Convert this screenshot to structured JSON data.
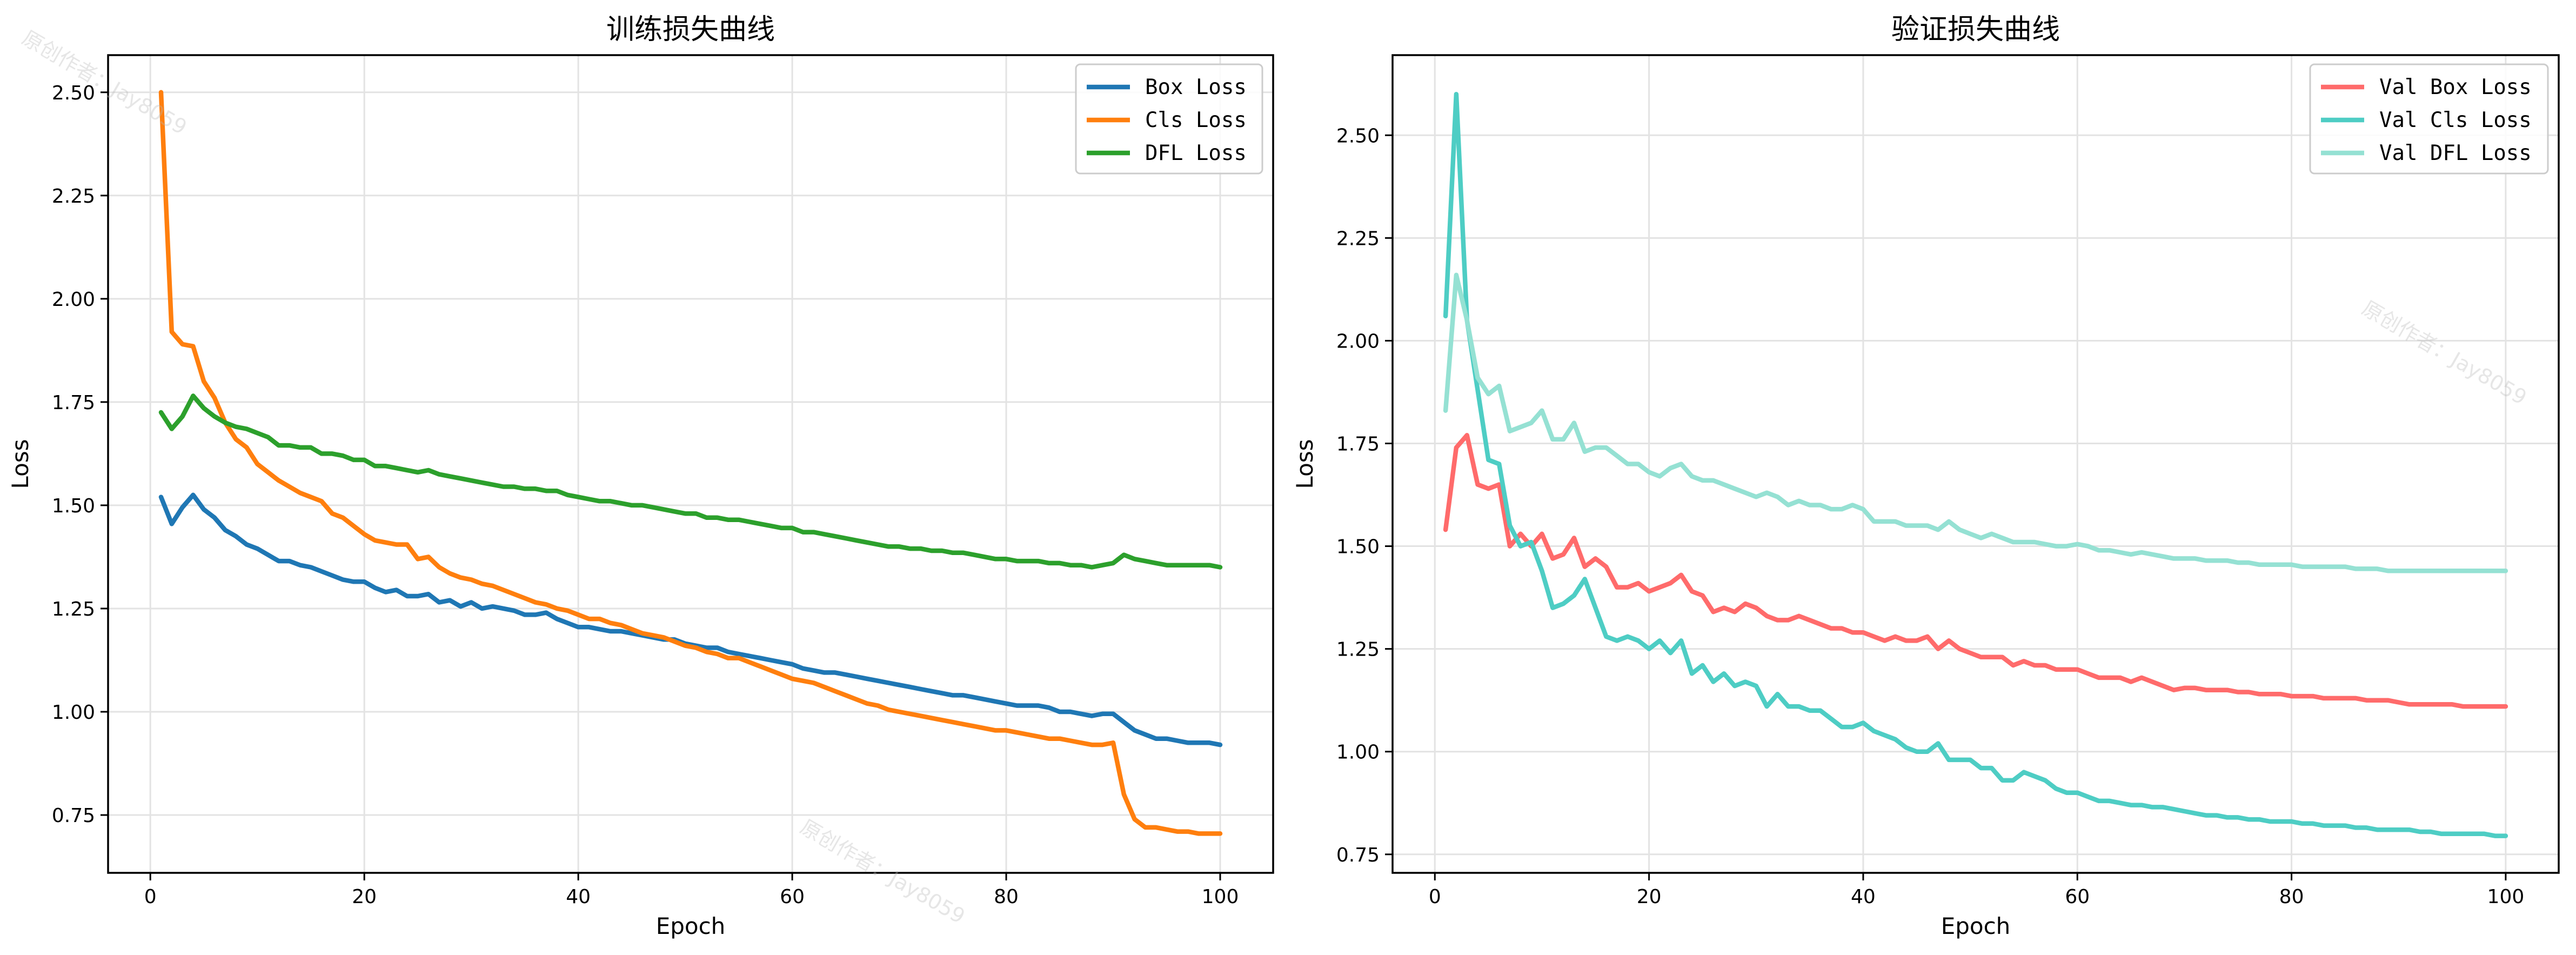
{
  "watermark": "原创作者：Jay8059",
  "chart_data": [
    {
      "type": "line",
      "title": "训练损失曲线",
      "xlabel": "Epoch",
      "ylabel": "Loss",
      "xlim": [
        -3.95,
        104.95
      ],
      "ylim": [
        0.61,
        2.59
      ],
      "xticks": [
        0,
        20,
        40,
        60,
        80,
        100
      ],
      "yticks": [
        0.75,
        1.0,
        1.25,
        1.5,
        1.75,
        2.0,
        2.25,
        2.5
      ],
      "grid": true,
      "legend_position": "top-right",
      "series": [
        {
          "name": "Box Loss",
          "color": "#1f77b4",
          "x_start": 1,
          "values": [
            1.52,
            1.455,
            1.495,
            1.525,
            1.49,
            1.47,
            1.44,
            1.425,
            1.405,
            1.395,
            1.38,
            1.365,
            1.365,
            1.355,
            1.35,
            1.34,
            1.33,
            1.32,
            1.315,
            1.315,
            1.3,
            1.29,
            1.295,
            1.28,
            1.28,
            1.285,
            1.265,
            1.27,
            1.255,
            1.265,
            1.25,
            1.255,
            1.25,
            1.245,
            1.235,
            1.235,
            1.24,
            1.225,
            1.215,
            1.205,
            1.205,
            1.2,
            1.195,
            1.195,
            1.19,
            1.185,
            1.18,
            1.175,
            1.175,
            1.165,
            1.16,
            1.155,
            1.155,
            1.145,
            1.14,
            1.135,
            1.13,
            1.125,
            1.12,
            1.115,
            1.105,
            1.1,
            1.095,
            1.095,
            1.09,
            1.085,
            1.08,
            1.075,
            1.07,
            1.065,
            1.06,
            1.055,
            1.05,
            1.045,
            1.04,
            1.04,
            1.035,
            1.03,
            1.025,
            1.02,
            1.015,
            1.015,
            1.015,
            1.01,
            1.0,
            1.0,
            0.995,
            0.99,
            0.995,
            0.995,
            0.975,
            0.955,
            0.945,
            0.935,
            0.935,
            0.93,
            0.925,
            0.925,
            0.925,
            0.92
          ]
        },
        {
          "name": "Cls Loss",
          "color": "#ff7f0e",
          "x_start": 1,
          "values": [
            2.5,
            1.92,
            1.89,
            1.885,
            1.8,
            1.76,
            1.7,
            1.66,
            1.64,
            1.6,
            1.58,
            1.56,
            1.545,
            1.53,
            1.52,
            1.51,
            1.48,
            1.47,
            1.45,
            1.43,
            1.415,
            1.41,
            1.405,
            1.405,
            1.37,
            1.375,
            1.35,
            1.335,
            1.325,
            1.32,
            1.31,
            1.305,
            1.295,
            1.285,
            1.275,
            1.265,
            1.26,
            1.25,
            1.245,
            1.235,
            1.225,
            1.225,
            1.215,
            1.21,
            1.2,
            1.19,
            1.185,
            1.18,
            1.17,
            1.16,
            1.155,
            1.145,
            1.14,
            1.13,
            1.13,
            1.12,
            1.11,
            1.1,
            1.09,
            1.08,
            1.075,
            1.07,
            1.06,
            1.05,
            1.04,
            1.03,
            1.02,
            1.015,
            1.005,
            1.0,
            0.995,
            0.99,
            0.985,
            0.98,
            0.975,
            0.97,
            0.965,
            0.96,
            0.955,
            0.955,
            0.95,
            0.945,
            0.94,
            0.935,
            0.935,
            0.93,
            0.925,
            0.92,
            0.92,
            0.925,
            0.8,
            0.74,
            0.72,
            0.72,
            0.715,
            0.71,
            0.71,
            0.705,
            0.705,
            0.705
          ]
        },
        {
          "name": "DFL Loss",
          "color": "#2ca02c",
          "x_start": 1,
          "values": [
            1.725,
            1.685,
            1.715,
            1.765,
            1.735,
            1.715,
            1.7,
            1.69,
            1.685,
            1.675,
            1.665,
            1.645,
            1.645,
            1.64,
            1.64,
            1.625,
            1.625,
            1.62,
            1.61,
            1.61,
            1.595,
            1.595,
            1.59,
            1.585,
            1.58,
            1.585,
            1.575,
            1.57,
            1.565,
            1.56,
            1.555,
            1.55,
            1.545,
            1.545,
            1.54,
            1.54,
            1.535,
            1.535,
            1.525,
            1.52,
            1.515,
            1.51,
            1.51,
            1.505,
            1.5,
            1.5,
            1.495,
            1.49,
            1.485,
            1.48,
            1.48,
            1.47,
            1.47,
            1.465,
            1.465,
            1.46,
            1.455,
            1.45,
            1.445,
            1.445,
            1.435,
            1.435,
            1.43,
            1.425,
            1.42,
            1.415,
            1.41,
            1.405,
            1.4,
            1.4,
            1.395,
            1.395,
            1.39,
            1.39,
            1.385,
            1.385,
            1.38,
            1.375,
            1.37,
            1.37,
            1.365,
            1.365,
            1.365,
            1.36,
            1.36,
            1.355,
            1.355,
            1.35,
            1.355,
            1.36,
            1.38,
            1.37,
            1.365,
            1.36,
            1.355,
            1.355,
            1.355,
            1.355,
            1.355,
            1.35
          ]
        }
      ]
    },
    {
      "type": "line",
      "title": "验证损失曲线",
      "xlabel": "Epoch",
      "ylabel": "Loss",
      "xlim": [
        -3.95,
        104.95
      ],
      "ylim": [
        0.705,
        2.695
      ],
      "xticks": [
        0,
        20,
        40,
        60,
        80,
        100
      ],
      "yticks": [
        0.75,
        1.0,
        1.25,
        1.5,
        1.75,
        2.0,
        2.25,
        2.5
      ],
      "grid": true,
      "legend_position": "top-right",
      "series": [
        {
          "name": "Val Box Loss",
          "color": "#ff6b6b",
          "x_start": 1,
          "values": [
            1.54,
            1.74,
            1.77,
            1.65,
            1.64,
            1.65,
            1.5,
            1.53,
            1.5,
            1.53,
            1.47,
            1.48,
            1.52,
            1.45,
            1.47,
            1.45,
            1.4,
            1.4,
            1.41,
            1.39,
            1.4,
            1.41,
            1.43,
            1.39,
            1.38,
            1.34,
            1.35,
            1.34,
            1.36,
            1.35,
            1.33,
            1.32,
            1.32,
            1.33,
            1.32,
            1.31,
            1.3,
            1.3,
            1.29,
            1.29,
            1.28,
            1.27,
            1.28,
            1.27,
            1.27,
            1.28,
            1.25,
            1.27,
            1.25,
            1.24,
            1.23,
            1.23,
            1.23,
            1.21,
            1.22,
            1.21,
            1.21,
            1.2,
            1.2,
            1.2,
            1.19,
            1.18,
            1.18,
            1.18,
            1.17,
            1.18,
            1.17,
            1.16,
            1.15,
            1.155,
            1.155,
            1.15,
            1.15,
            1.15,
            1.145,
            1.145,
            1.14,
            1.14,
            1.14,
            1.135,
            1.135,
            1.135,
            1.13,
            1.13,
            1.13,
            1.13,
            1.125,
            1.125,
            1.125,
            1.12,
            1.115,
            1.115,
            1.115,
            1.115,
            1.115,
            1.11,
            1.11,
            1.11,
            1.11,
            1.11
          ]
        },
        {
          "name": "Val Cls Loss",
          "color": "#4ecdc4",
          "x_start": 1,
          "values": [
            2.06,
            2.6,
            2.05,
            1.88,
            1.71,
            1.7,
            1.55,
            1.5,
            1.51,
            1.44,
            1.35,
            1.36,
            1.38,
            1.42,
            1.35,
            1.28,
            1.27,
            1.28,
            1.27,
            1.25,
            1.27,
            1.24,
            1.27,
            1.19,
            1.21,
            1.17,
            1.19,
            1.16,
            1.17,
            1.16,
            1.11,
            1.14,
            1.11,
            1.11,
            1.1,
            1.1,
            1.08,
            1.06,
            1.06,
            1.07,
            1.05,
            1.04,
            1.03,
            1.01,
            1.0,
            1.0,
            1.02,
            0.98,
            0.98,
            0.98,
            0.96,
            0.96,
            0.93,
            0.93,
            0.95,
            0.94,
            0.93,
            0.91,
            0.9,
            0.9,
            0.89,
            0.88,
            0.88,
            0.875,
            0.87,
            0.87,
            0.865,
            0.865,
            0.86,
            0.855,
            0.85,
            0.845,
            0.845,
            0.84,
            0.84,
            0.835,
            0.835,
            0.83,
            0.83,
            0.83,
            0.825,
            0.825,
            0.82,
            0.82,
            0.82,
            0.815,
            0.815,
            0.81,
            0.81,
            0.81,
            0.81,
            0.805,
            0.805,
            0.8,
            0.8,
            0.8,
            0.8,
            0.8,
            0.795,
            0.795
          ]
        },
        {
          "name": "Val DFL Loss",
          "color": "#95e1d3",
          "x_start": 1,
          "values": [
            1.83,
            2.16,
            2.05,
            1.91,
            1.87,
            1.89,
            1.78,
            1.79,
            1.8,
            1.83,
            1.76,
            1.76,
            1.8,
            1.73,
            1.74,
            1.74,
            1.72,
            1.7,
            1.7,
            1.68,
            1.67,
            1.69,
            1.7,
            1.67,
            1.66,
            1.66,
            1.65,
            1.64,
            1.63,
            1.62,
            1.63,
            1.62,
            1.6,
            1.61,
            1.6,
            1.6,
            1.59,
            1.59,
            1.6,
            1.59,
            1.56,
            1.56,
            1.56,
            1.55,
            1.55,
            1.55,
            1.54,
            1.56,
            1.54,
            1.53,
            1.52,
            1.53,
            1.52,
            1.51,
            1.51,
            1.51,
            1.505,
            1.5,
            1.5,
            1.505,
            1.5,
            1.49,
            1.49,
            1.485,
            1.48,
            1.485,
            1.48,
            1.475,
            1.47,
            1.47,
            1.47,
            1.465,
            1.465,
            1.465,
            1.46,
            1.46,
            1.455,
            1.455,
            1.455,
            1.455,
            1.45,
            1.45,
            1.45,
            1.45,
            1.45,
            1.445,
            1.445,
            1.445,
            1.44,
            1.44,
            1.44,
            1.44,
            1.44,
            1.44,
            1.44,
            1.44,
            1.44,
            1.44,
            1.44,
            1.44
          ]
        }
      ]
    }
  ]
}
